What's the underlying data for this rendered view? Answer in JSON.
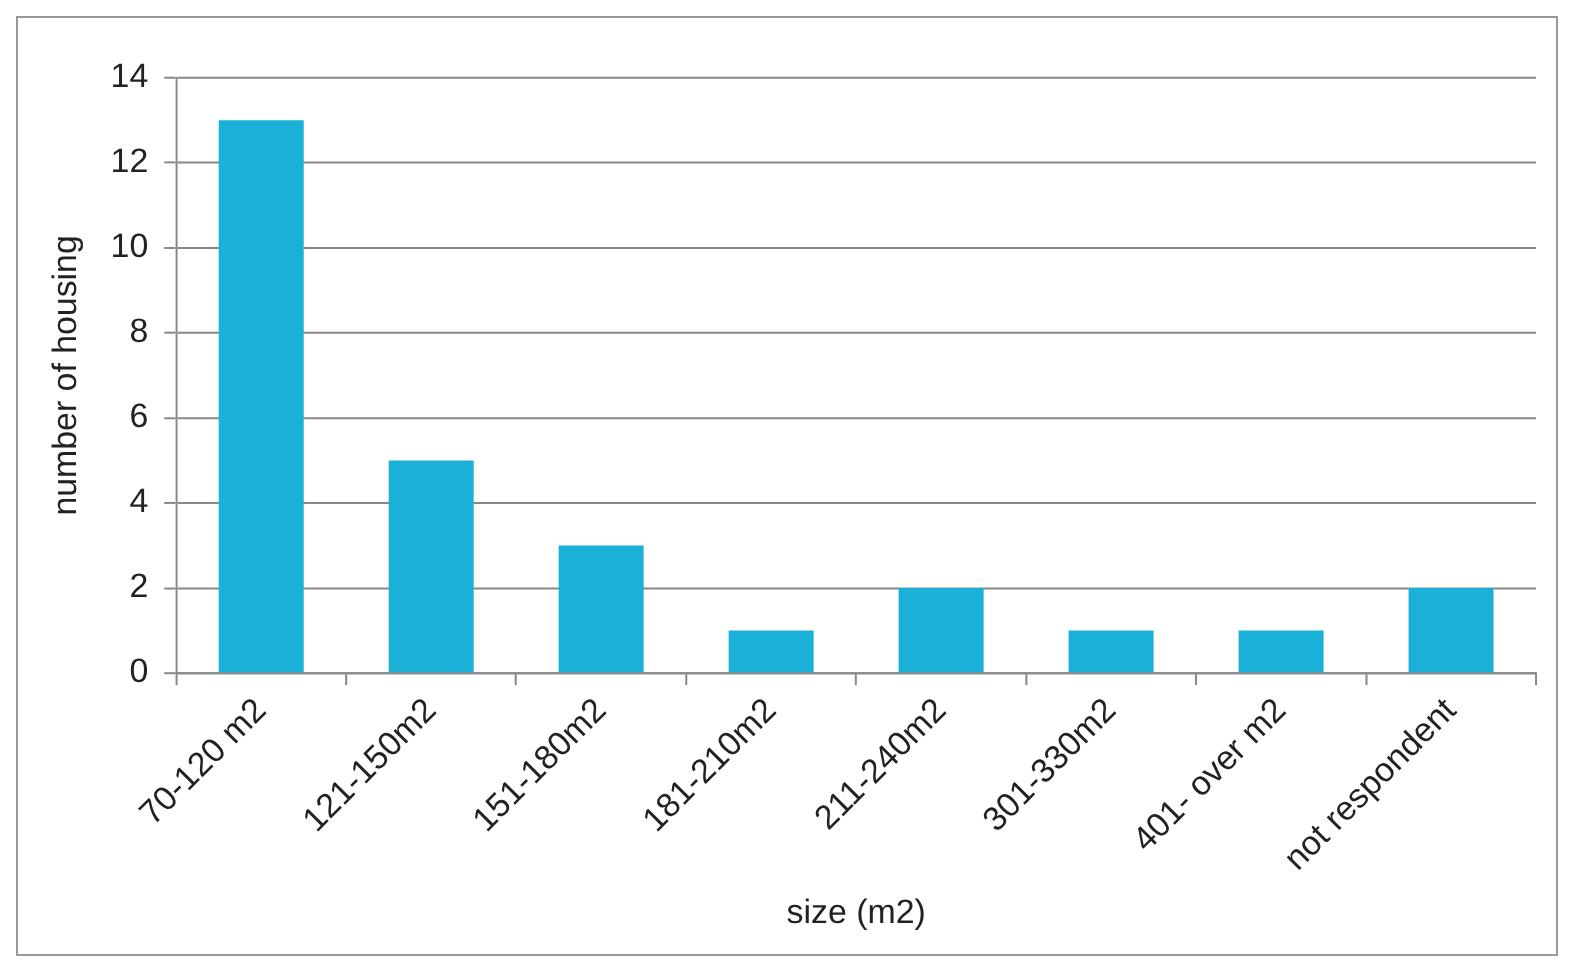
{
  "chart_data": {
    "type": "bar",
    "xlabel": "size (m2)",
    "ylabel": "number of housing",
    "categories": [
      "70-120 m2",
      "121-150m2",
      "151-180m2",
      "181-210m2",
      "211-240m2",
      "301-330m2",
      "401- over m2",
      "not respondent"
    ],
    "values": [
      13,
      5,
      3,
      1,
      2,
      1,
      1,
      2
    ],
    "color": "#1ab0d8",
    "ylim": [
      0,
      14
    ],
    "yticks": [
      0,
      2,
      4,
      6,
      8,
      10,
      12,
      14
    ],
    "grid": "y",
    "legend": false
  }
}
